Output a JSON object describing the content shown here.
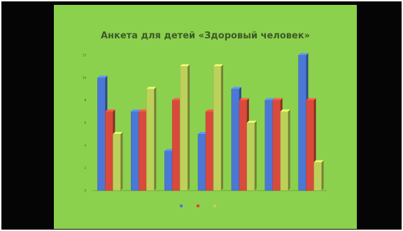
{
  "slide": {
    "title": "Анкета для детей «Здоровый человек»"
  },
  "colors": {
    "screen_border": "#050505",
    "slide_background": "#8cd14d",
    "series": [
      "#4b78d6",
      "#d94a3c",
      "#bcd15a"
    ]
  },
  "chart_data": {
    "type": "bar",
    "title": "Анкета для детей «Здоровый человек»",
    "categories": [
      "",
      "",
      "",
      "",
      "",
      "",
      ""
    ],
    "series": [
      {
        "values": [
          10,
          7,
          3.5,
          5,
          9,
          8,
          12
        ]
      },
      {
        "values": [
          7,
          7,
          8,
          7,
          8,
          8,
          8
        ]
      },
      {
        "values": [
          5,
          9,
          11,
          11,
          6,
          7,
          2.5
        ]
      }
    ],
    "ylim": [
      0,
      12
    ],
    "yticks": [
      0,
      2,
      4,
      6,
      8,
      10,
      12
    ],
    "grid": false,
    "legend": "bottom",
    "style": "3d-bars"
  }
}
